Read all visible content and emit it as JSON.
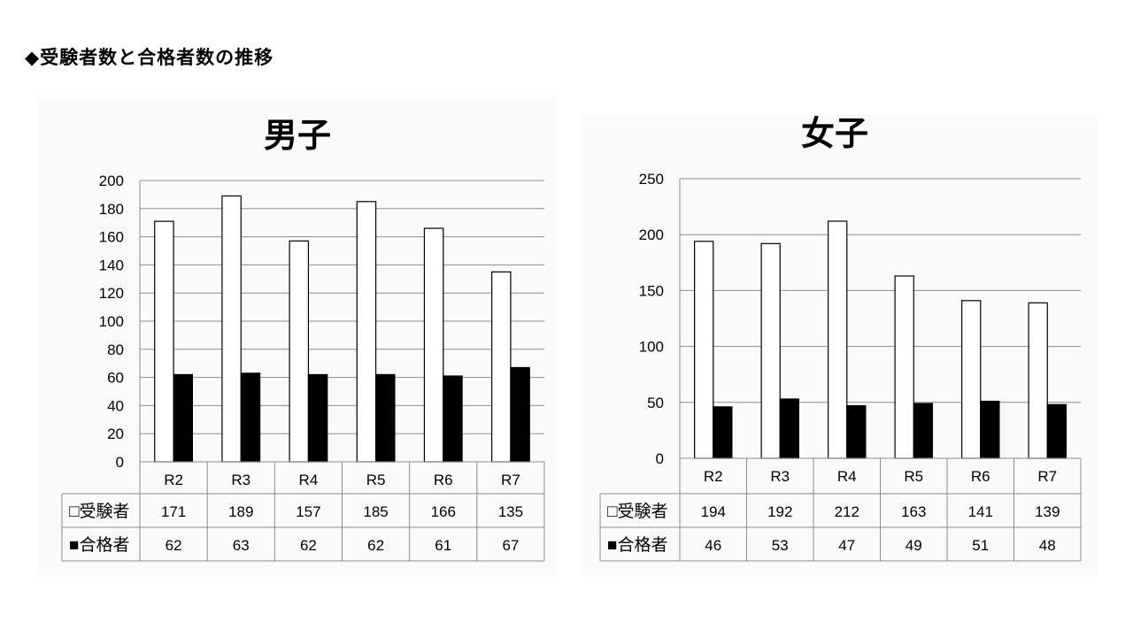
{
  "page": {
    "title": "◆受験者数と合格者数の推移"
  },
  "legend_markers": {
    "applicants": "□",
    "passed": "■"
  },
  "chart_data": [
    {
      "type": "bar",
      "title": "男子",
      "categories": [
        "R2",
        "R3",
        "R4",
        "R5",
        "R6",
        "R7"
      ],
      "series": [
        {
          "name": "受験者",
          "values": [
            171,
            189,
            157,
            185,
            166,
            135
          ],
          "fill": "#ffffff"
        },
        {
          "name": "合格者",
          "values": [
            62,
            63,
            62,
            62,
            61,
            67
          ],
          "fill": "#000000"
        }
      ],
      "ylim": [
        0,
        200
      ],
      "yticks": [
        0,
        20,
        40,
        60,
        80,
        100,
        120,
        140,
        160,
        180,
        200
      ],
      "grid": true,
      "data_table": true
    },
    {
      "type": "bar",
      "title": "女子",
      "categories": [
        "R2",
        "R3",
        "R4",
        "R5",
        "R6",
        "R7"
      ],
      "series": [
        {
          "name": "受験者",
          "values": [
            194,
            192,
            212,
            163,
            141,
            139
          ],
          "fill": "#ffffff"
        },
        {
          "name": "合格者",
          "values": [
            46,
            53,
            47,
            49,
            51,
            48
          ],
          "fill": "#000000"
        }
      ],
      "ylim": [
        0,
        250
      ],
      "yticks": [
        0,
        50,
        100,
        150,
        200,
        250
      ],
      "grid": true,
      "data_table": true
    }
  ]
}
